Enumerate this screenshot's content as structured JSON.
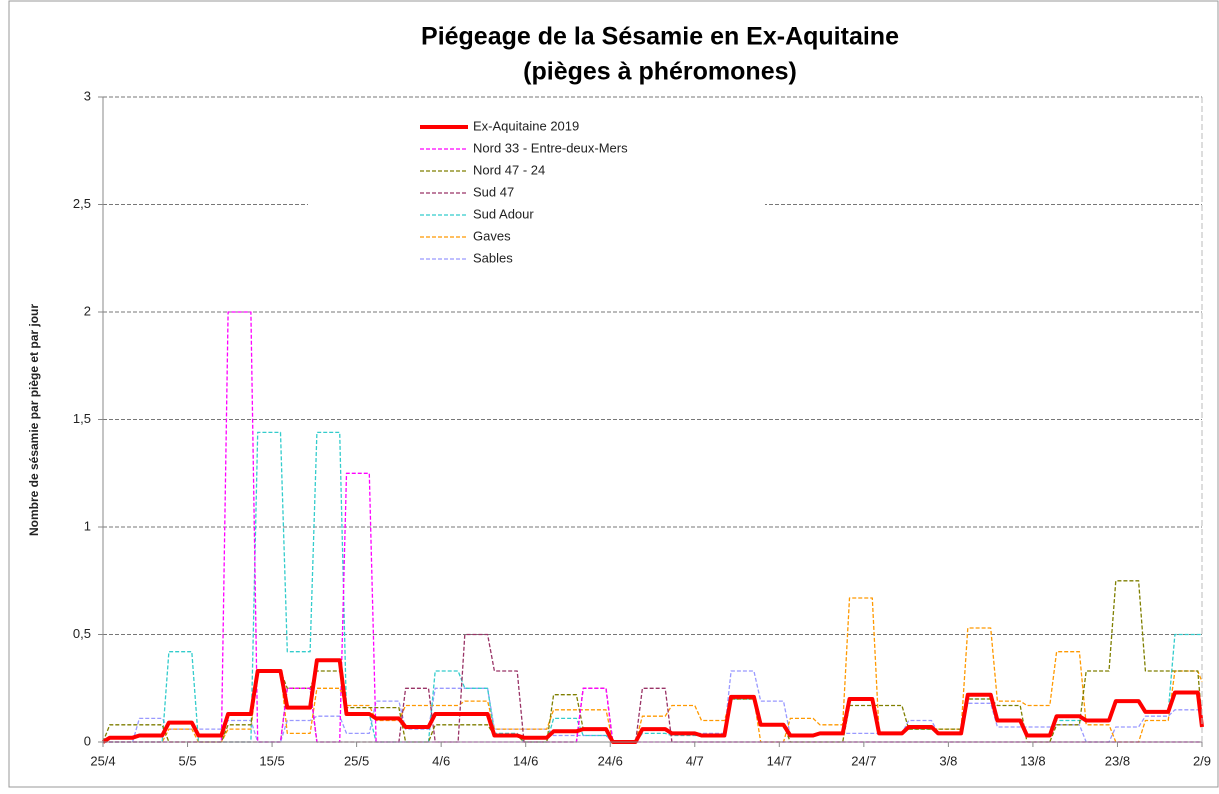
{
  "chart_data": {
    "type": "line",
    "title": "Piégeage de la Sésamie en Ex-Aquitaine",
    "subtitle": "(pièges à phéromones)",
    "y_label": "Nombre de sésamie par piège et par jour",
    "x": [
      0,
      0.8,
      3.5,
      4.3,
      7,
      7.8,
      10.5,
      11.3,
      14,
      14.8,
      17.5,
      18.3,
      21,
      21.8,
      24.5,
      25.3,
      28,
      28.8,
      31.5,
      32.3,
      35,
      35.8,
      38.5,
      39.3,
      42,
      42.8,
      45.5,
      46.3,
      49,
      49.8,
      52.5,
      53.3,
      56,
      56.8,
      59.5,
      60.3,
      63,
      63.8,
      66.5,
      67.3,
      70,
      70.8,
      73.5,
      74.3,
      77,
      77.8,
      80.5,
      81.3,
      84,
      84.8,
      87.5,
      88.3,
      91,
      91.8,
      94.5,
      95.3,
      98,
      98.8,
      101.5,
      102.3,
      105,
      105.8,
      108.5,
      109.3,
      112,
      112.8,
      115.5,
      116.3,
      119,
      119.8,
      122.5,
      123.3,
      126,
      126.8,
      129.5,
      130
    ],
    "xlim": [
      0,
      130
    ],
    "xticks": [
      {
        "value": 0,
        "label": "25/4"
      },
      {
        "value": 10,
        "label": "5/5"
      },
      {
        "value": 20,
        "label": "15/5"
      },
      {
        "value": 30,
        "label": "25/5"
      },
      {
        "value": 40,
        "label": "4/6"
      },
      {
        "value": 50,
        "label": "14/6"
      },
      {
        "value": 60,
        "label": "24/6"
      },
      {
        "value": 70,
        "label": "4/7"
      },
      {
        "value": 80,
        "label": "14/7"
      },
      {
        "value": 90,
        "label": "24/7"
      },
      {
        "value": 100,
        "label": "3/8"
      },
      {
        "value": 110,
        "label": "13/8"
      },
      {
        "value": 120,
        "label": "23/8"
      },
      {
        "value": 130,
        "label": "2/9"
      }
    ],
    "ylim": [
      0,
      3
    ],
    "yticks": [
      0,
      {
        "value": 0.5,
        "label": "0,5"
      },
      1,
      {
        "value": 1.5,
        "label": "1,5"
      },
      2,
      {
        "value": 2.5,
        "label": "2,5"
      },
      3
    ],
    "grid": true,
    "series": [
      {
        "name": "Ex-Aquitaine 2019",
        "color": "#ff0000",
        "width": 4,
        "dashed": false,
        "values": [
          0,
          0.02,
          0.02,
          0.03,
          0.03,
          0.09,
          0.09,
          0.03,
          0.03,
          0.13,
          0.13,
          0.33,
          0.33,
          0.16,
          0.16,
          0.38,
          0.38,
          0.13,
          0.13,
          0.11,
          0.11,
          0.07,
          0.07,
          0.13,
          0.13,
          0.13,
          0.13,
          0.03,
          0.03,
          0.02,
          0.02,
          0.05,
          0.05,
          0.06,
          0.06,
          0,
          0,
          0.06,
          0.06,
          0.04,
          0.04,
          0.03,
          0.03,
          0.21,
          0.21,
          0.08,
          0.08,
          0.03,
          0.03,
          0.04,
          0.04,
          0.2,
          0.2,
          0.04,
          0.04,
          0.07,
          0.07,
          0.04,
          0.04,
          0.22,
          0.22,
          0.1,
          0.1,
          0.03,
          0.03,
          0.12,
          0.12,
          0.1,
          0.1,
          0.19,
          0.19,
          0.14,
          0.14,
          0.23,
          0.23,
          0.07
        ]
      },
      {
        "name": "Nord 33 - Entre-deux-Mers",
        "color": "#ff00ff",
        "width": 1.3,
        "dashed": true,
        "values": [
          0,
          0,
          0,
          0,
          0,
          0,
          0,
          0,
          0,
          2,
          2,
          0,
          0,
          0.25,
          0.25,
          0,
          0,
          1.25,
          1.25,
          0,
          0,
          0,
          0,
          0,
          0,
          0,
          0,
          0,
          0,
          0,
          0,
          0,
          0,
          0.25,
          0.25,
          0,
          0,
          0,
          0,
          0,
          0,
          0,
          0,
          0,
          0,
          0,
          0,
          0,
          0,
          0,
          0,
          0,
          0,
          0,
          0,
          0,
          0,
          0,
          0,
          0,
          0,
          0,
          0,
          0,
          0,
          0,
          0,
          0,
          0,
          0,
          0,
          0,
          0,
          0,
          0,
          0
        ]
      },
      {
        "name": "Nord 47 - 24",
        "color": "#7f7f00",
        "width": 1.3,
        "dashed": true,
        "values": [
          0,
          0.08,
          0.08,
          0.08,
          0.08,
          0,
          0,
          0,
          0,
          0.08,
          0.08,
          0.33,
          0.33,
          0.25,
          0.25,
          0.33,
          0.33,
          0.16,
          0.16,
          0.16,
          0.16,
          0,
          0,
          0.08,
          0.08,
          0.08,
          0.08,
          0.03,
          0.03,
          0,
          0,
          0.22,
          0.22,
          0.06,
          0.06,
          0,
          0,
          0.06,
          0.06,
          0.04,
          0.04,
          0.03,
          0.03,
          0.2,
          0.2,
          0.08,
          0.08,
          0,
          0,
          0,
          0,
          0.17,
          0.17,
          0.17,
          0.17,
          0.06,
          0.06,
          0.06,
          0.06,
          0.2,
          0.2,
          0.17,
          0.17,
          0,
          0,
          0.08,
          0.08,
          0.33,
          0.33,
          0.75,
          0.75,
          0.33,
          0.33,
          0.33,
          0.33,
          0.1
        ]
      },
      {
        "name": "Sud 47",
        "color": "#993366",
        "width": 1.3,
        "dashed": true,
        "values": [
          0,
          0,
          0,
          0,
          0,
          0,
          0,
          0,
          0,
          0,
          0,
          0,
          0,
          0.25,
          0.25,
          0,
          0,
          0,
          0,
          0,
          0,
          0.25,
          0.25,
          0,
          0,
          0.5,
          0.5,
          0.33,
          0.33,
          0,
          0,
          0,
          0,
          0.25,
          0.25,
          0,
          0,
          0.25,
          0.25,
          0,
          0,
          0,
          0,
          0,
          0,
          0,
          0,
          0,
          0,
          0,
          0,
          0,
          0,
          0,
          0,
          0,
          0,
          0,
          0,
          0,
          0,
          0,
          0,
          0,
          0,
          0,
          0,
          0,
          0,
          0,
          0,
          0,
          0,
          0,
          0,
          0
        ]
      },
      {
        "name": "Sud Adour",
        "color": "#33cccc",
        "width": 1.3,
        "dashed": true,
        "values": [
          0,
          0,
          0,
          0,
          0,
          0.42,
          0.42,
          0,
          0,
          0,
          0,
          1.44,
          1.44,
          0.42,
          0.42,
          1.44,
          1.44,
          0.13,
          0.13,
          0,
          0,
          0,
          0,
          0.33,
          0.33,
          0.25,
          0.25,
          0.04,
          0.04,
          0,
          0,
          0.11,
          0.11,
          0.03,
          0.03,
          0,
          0,
          0.04,
          0.04,
          0.03,
          0.03,
          0.03,
          0.03,
          0.2,
          0.2,
          0.08,
          0.08,
          0.03,
          0.03,
          0.04,
          0.04,
          0.2,
          0.2,
          0.04,
          0.04,
          0.06,
          0.06,
          0.04,
          0.04,
          0.2,
          0.2,
          0.1,
          0.1,
          0.03,
          0.03,
          0.1,
          0.1,
          0.1,
          0.1,
          0.19,
          0.19,
          0.14,
          0.14,
          0.5,
          0.5,
          0.5
        ]
      },
      {
        "name": "Gaves",
        "color": "#ff9900",
        "width": 1.3,
        "dashed": true,
        "values": [
          0,
          0,
          0,
          0,
          0,
          0.06,
          0.06,
          0,
          0,
          0.06,
          0.06,
          0.33,
          0.33,
          0.04,
          0.04,
          0.25,
          0.25,
          0.17,
          0.17,
          0.1,
          0.1,
          0.17,
          0.17,
          0.17,
          0.17,
          0.19,
          0.19,
          0.06,
          0.06,
          0.06,
          0.06,
          0.15,
          0.15,
          0.15,
          0.15,
          0,
          0,
          0.12,
          0.12,
          0.17,
          0.17,
          0.1,
          0.1,
          0.2,
          0.2,
          0,
          0,
          0.11,
          0.11,
          0.08,
          0.08,
          0.67,
          0.67,
          0.04,
          0.04,
          0.06,
          0.06,
          0.06,
          0.06,
          0.53,
          0.53,
          0.19,
          0.19,
          0.17,
          0.17,
          0.42,
          0.42,
          0.08,
          0.08,
          0,
          0,
          0.1,
          0.1,
          0.33,
          0.33,
          0.28
        ]
      },
      {
        "name": "Sables",
        "color": "#9999ff",
        "width": 1.3,
        "dashed": true,
        "values": [
          0,
          0,
          0,
          0.11,
          0.11,
          0.06,
          0.06,
          0.06,
          0.06,
          0.1,
          0.1,
          0,
          0,
          0.1,
          0.1,
          0.12,
          0.12,
          0.04,
          0.04,
          0.19,
          0.19,
          0.06,
          0.06,
          0.25,
          0.25,
          0.25,
          0.25,
          0.06,
          0.06,
          0.06,
          0.06,
          0.03,
          0.03,
          0.03,
          0.03,
          0,
          0,
          0.06,
          0.06,
          0.04,
          0.04,
          0.04,
          0.04,
          0.33,
          0.33,
          0.19,
          0.19,
          0.03,
          0.03,
          0.04,
          0.04,
          0.04,
          0.04,
          0.04,
          0.04,
          0.1,
          0.1,
          0.04,
          0.04,
          0.18,
          0.18,
          0.07,
          0.07,
          0.07,
          0.07,
          0.08,
          0.08,
          0,
          0,
          0.07,
          0.07,
          0.12,
          0.12,
          0.15,
          0.15,
          0.15
        ]
      }
    ]
  }
}
